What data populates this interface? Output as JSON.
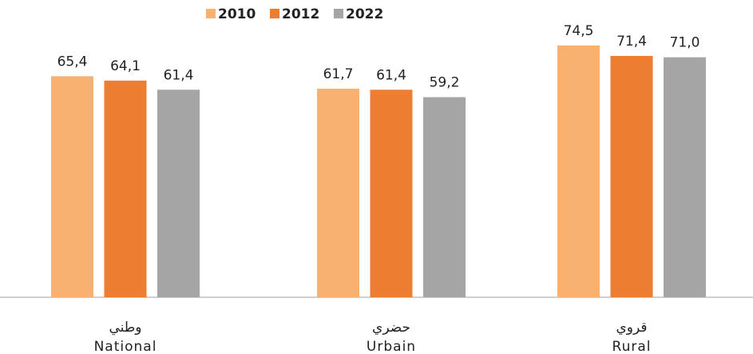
{
  "chart_data": {
    "type": "bar",
    "categories": [
      "National",
      "Urbain",
      "Rural"
    ],
    "categories_ar": [
      "وطني",
      "حضري",
      "قروي"
    ],
    "series": [
      {
        "name": "2010",
        "color": "#f8b170",
        "values": [
          65.4,
          61.7,
          74.5
        ],
        "value_labels": [
          "65,4",
          "61,7",
          "74,5"
        ]
      },
      {
        "name": "2012",
        "color": "#ed7d31",
        "values": [
          64.1,
          61.4,
          71.4
        ],
        "value_labels": [
          "64,1",
          "61,4",
          "71,4"
        ]
      },
      {
        "name": "2022",
        "color": "#a5a5a5",
        "values": [
          61.4,
          59.2,
          71.0
        ],
        "value_labels": [
          "61,4",
          "59,2",
          "71,0"
        ]
      }
    ],
    "legend": "top"
  }
}
